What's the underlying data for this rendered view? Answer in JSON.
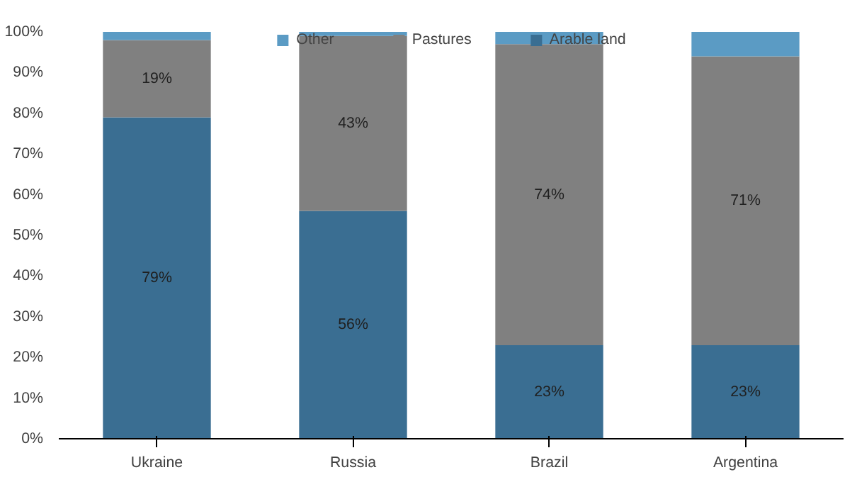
{
  "chart_data": {
    "type": "bar",
    "stacked": true,
    "categories": [
      "Ukraine",
      "Russia",
      "Brazil",
      "Argentina"
    ],
    "series": [
      {
        "name": "Arable land",
        "color": "#3a6e92",
        "values": [
          79,
          56,
          23,
          23
        ],
        "value_labels": [
          "79%",
          "56%",
          "23%",
          "23%"
        ]
      },
      {
        "name": "Pastures",
        "color": "#808080",
        "values": [
          19,
          43,
          74,
          71
        ],
        "value_labels": [
          "19%",
          "43%",
          "74%",
          "71%"
        ]
      },
      {
        "name": "Other",
        "color": "#5b9bc4",
        "values": [
          2,
          1,
          3,
          6
        ]
      }
    ],
    "ylim": [
      0,
      100
    ],
    "yticks": [
      {
        "value": 0,
        "label": "0%"
      },
      {
        "value": 10,
        "label": "10%"
      },
      {
        "value": 20,
        "label": "20%"
      },
      {
        "value": 30,
        "label": "30%"
      },
      {
        "value": 40,
        "label": "40%"
      },
      {
        "value": 50,
        "label": "50%"
      },
      {
        "value": 60,
        "label": "60%"
      },
      {
        "value": 70,
        "label": "70%"
      },
      {
        "value": 80,
        "label": "80%"
      },
      {
        "value": 90,
        "label": "90%"
      },
      {
        "value": 100,
        "label": "100%"
      }
    ],
    "legend": "top",
    "grid": false
  }
}
